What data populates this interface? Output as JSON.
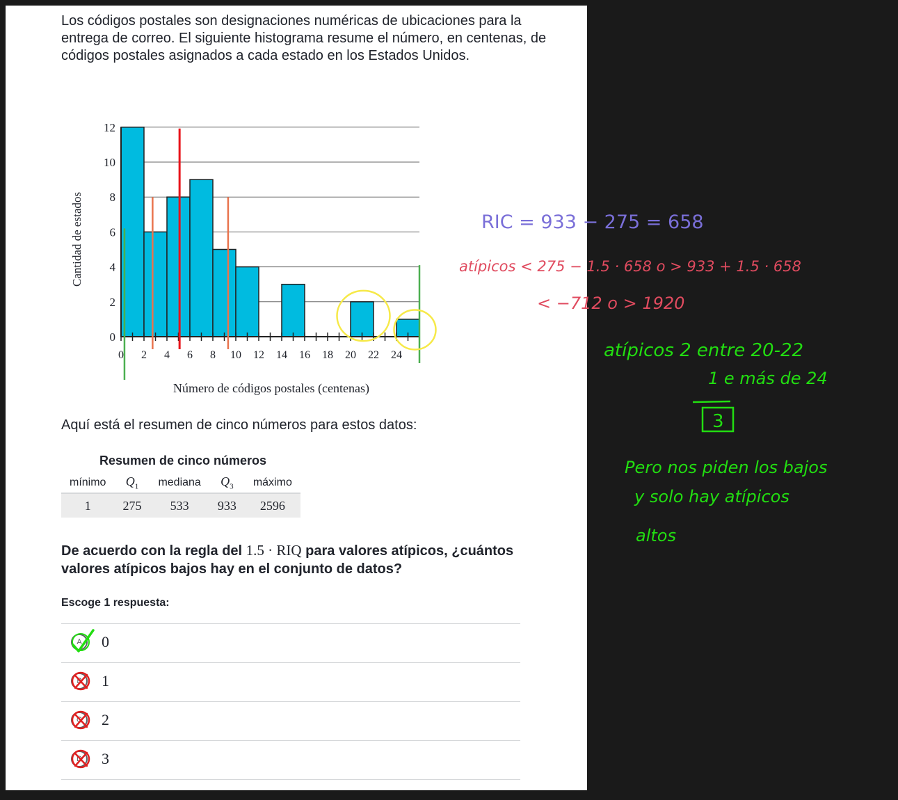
{
  "intro": "Los códigos postales son designaciones numéricas de ubicaciones para la entrega de correo. El siguiente histograma resume el número, en centenas, de códigos postales asignados a cada estado en los Estados Unidos.",
  "chart_data": {
    "type": "bar",
    "xlabel": "Número de códigos postales (centenas)",
    "ylabel": "Cantidad de estados",
    "bin_width": 2,
    "bins": [
      {
        "start": 0,
        "end": 2,
        "count": 12
      },
      {
        "start": 2,
        "end": 4,
        "count": 6
      },
      {
        "start": 4,
        "end": 6,
        "count": 8
      },
      {
        "start": 6,
        "end": 8,
        "count": 9
      },
      {
        "start": 8,
        "end": 10,
        "count": 5
      },
      {
        "start": 10,
        "end": 12,
        "count": 4
      },
      {
        "start": 12,
        "end": 14,
        "count": 0
      },
      {
        "start": 14,
        "end": 16,
        "count": 3
      },
      {
        "start": 16,
        "end": 18,
        "count": 0
      },
      {
        "start": 18,
        "end": 20,
        "count": 0
      },
      {
        "start": 20,
        "end": 22,
        "count": 2
      },
      {
        "start": 22,
        "end": 24,
        "count": 0
      },
      {
        "start": 24,
        "end": 26,
        "count": 1
      }
    ],
    "xticks": [
      "0",
      "2",
      "4",
      "6",
      "8",
      "10",
      "12",
      "14",
      "16",
      "18",
      "20",
      "22",
      "24"
    ],
    "yticks": [
      "0",
      "2",
      "4",
      "6",
      "8",
      "10",
      "12"
    ],
    "xlim": [
      0,
      26
    ],
    "ylim": [
      0,
      12
    ],
    "grid": true,
    "bar_color": "#00bbe0",
    "annotations": {
      "red_line_x": 5.1,
      "orange_lines_x": [
        2.75,
        9.33
      ],
      "green_lines_x": [
        0.3,
        26
      ],
      "circled_bins": [
        20,
        24
      ]
    }
  },
  "summary_text": "Aquí está el resumen de cinco números para estos datos:",
  "table": {
    "caption": "Resumen de cinco números",
    "headers": [
      "mínimo",
      "Q1",
      "mediana",
      "Q3",
      "máximo"
    ],
    "values": [
      "1",
      "275",
      "533",
      "933",
      "2596"
    ]
  },
  "question": {
    "before": "De acuerdo con la regla del ",
    "math": "1.5 · RIQ",
    "after": " para valores atípicos, ¿cuántos valores atípicos bajos hay en el conjunto de datos?"
  },
  "choose_label": "Escoge 1 respuesta:",
  "choices": [
    {
      "letter": "A",
      "label": "0",
      "state": "correct"
    },
    {
      "letter": "B",
      "label": "1",
      "state": "crossed"
    },
    {
      "letter": "C",
      "label": "2",
      "state": "crossed"
    },
    {
      "letter": "D",
      "label": "3",
      "state": "crossed"
    }
  ],
  "notes": {
    "ric": "RIC = 933 − 275 = 658",
    "atipicos_rule": "atípicos < 275 − 1.5 · 658   o   > 933 + 1.5 · 658",
    "atipicos_values": "< −712   o  > 1920",
    "atipicos_count_line1": "atípicos  2 entre 20-22",
    "atipicos_count_line2": "1 e más de 24",
    "boxed": "3",
    "conclusion_line1": "Pero nos piden los bajos",
    "conclusion_line2": "y solo hay atípicos",
    "conclusion_line3": "altos",
    "colors": {
      "blue": "#7a6fd8",
      "red": "#e04b5f",
      "green": "#22dd11",
      "yellow": "#f6e948"
    }
  }
}
